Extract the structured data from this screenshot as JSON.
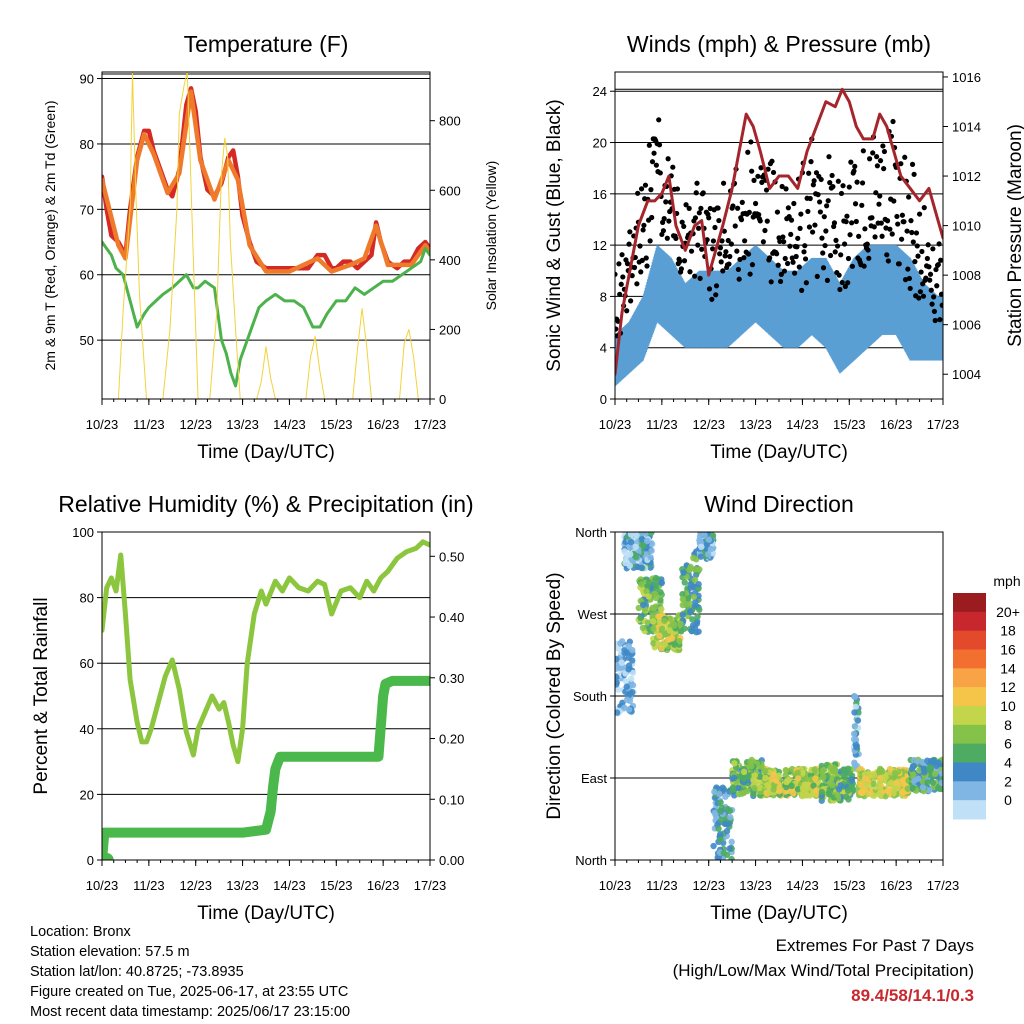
{
  "chart_data": [
    {
      "type": "line",
      "title": "Temperature (F)",
      "xlabel": "Time (Day/UTC)",
      "ylabel": "2m & 9m T (Red, Orange) & 2m Td (Green)",
      "y2label": "Solar Insolation (Yellow)",
      "x_ticks": [
        "10/23",
        "11/23",
        "12/23",
        "13/23",
        "14/23",
        "15/23",
        "16/23",
        "17/23"
      ],
      "xlim": [
        0,
        7
      ],
      "ylim": [
        41,
        91
      ],
      "y_ticks": [
        50,
        60,
        70,
        80,
        90
      ],
      "y2lim": [
        0,
        940
      ],
      "y2_ticks": [
        0,
        200,
        400,
        600,
        800
      ],
      "grid": "horizontal",
      "series": [
        {
          "color": "#d42a25",
          "axis": "left",
          "x": [
            0,
            0.1,
            0.2,
            0.35,
            0.5,
            0.6,
            0.75,
            0.9,
            1.0,
            1.1,
            1.25,
            1.4,
            1.5,
            1.65,
            1.8,
            1.9,
            2.0,
            2.1,
            2.25,
            2.4,
            2.55,
            2.7,
            2.8,
            2.9,
            3.0,
            3.15,
            3.3,
            3.5,
            3.65,
            3.8,
            4.0,
            4.2,
            4.4,
            4.6,
            4.75,
            4.9,
            5.0,
            5.15,
            5.3,
            5.45,
            5.6,
            5.75,
            5.85,
            5.95,
            6.1,
            6.3,
            6.45,
            6.6,
            6.75,
            6.9,
            7.0
          ],
          "values": [
            75,
            70,
            66,
            65,
            63,
            70,
            78,
            82,
            82,
            79,
            76,
            73,
            72,
            76,
            86,
            88.5,
            85,
            78,
            73,
            72,
            74,
            78,
            79,
            75,
            69,
            65,
            62,
            61,
            61,
            61,
            61,
            61,
            61,
            63,
            63,
            61,
            61,
            62,
            62,
            61,
            62,
            63,
            68,
            65,
            62,
            61,
            62,
            62,
            64,
            65,
            64
          ]
        },
        {
          "color": "#f07a2c",
          "axis": "left",
          "x": [
            0,
            0.35,
            0.5,
            0.75,
            0.9,
            1.1,
            1.4,
            1.65,
            1.9,
            2.1,
            2.4,
            2.7,
            2.9,
            3.15,
            3.5,
            4.0,
            4.6,
            4.9,
            5.3,
            5.6,
            5.85,
            6.1,
            6.6,
            6.9,
            7.0
          ],
          "values": [
            74.5,
            64.5,
            62.5,
            77.5,
            81.5,
            78.5,
            72.5,
            75.5,
            88,
            77.5,
            71.5,
            77.5,
            74.5,
            64.5,
            60.5,
            60.5,
            62.5,
            60.5,
            61.5,
            62.5,
            67.5,
            61.5,
            61.5,
            64.5,
            63.5
          ]
        },
        {
          "color": "#4cb24c",
          "axis": "left",
          "x": [
            0,
            0.1,
            0.2,
            0.3,
            0.45,
            0.6,
            0.75,
            0.9,
            1.0,
            1.15,
            1.3,
            1.5,
            1.65,
            1.8,
            1.95,
            2.05,
            2.2,
            2.4,
            2.55,
            2.65,
            2.75,
            2.85,
            2.95,
            3.05,
            3.2,
            3.35,
            3.5,
            3.7,
            3.9,
            4.1,
            4.3,
            4.5,
            4.65,
            4.8,
            5.0,
            5.2,
            5.4,
            5.6,
            5.8,
            6.0,
            6.2,
            6.4,
            6.6,
            6.8,
            6.9,
            7.0
          ],
          "values": [
            65,
            64,
            63,
            61,
            60,
            56,
            52,
            54,
            55,
            56,
            57,
            58,
            59,
            60,
            58,
            58,
            59,
            58,
            50,
            48,
            45,
            43,
            47,
            49,
            52,
            55,
            56,
            57,
            56,
            56,
            55,
            52,
            52,
            54,
            56,
            56,
            58,
            57,
            58,
            59,
            59,
            60,
            61,
            62,
            64,
            63
          ]
        },
        {
          "color": "#f2d33a",
          "axis": "right",
          "name_hidden": true,
          "x": [
            0,
            0.35,
            0.45,
            0.6,
            0.65,
            0.72,
            0.8,
            0.95,
            1.3,
            1.45,
            1.6,
            1.65,
            1.75,
            1.82,
            1.88,
            1.95,
            2.05,
            2.3,
            2.45,
            2.55,
            2.62,
            2.68,
            2.74,
            2.85,
            2.95,
            3.3,
            3.4,
            3.5,
            3.6,
            3.7,
            4.35,
            4.45,
            4.55,
            4.65,
            4.75,
            5.35,
            5.45,
            5.55,
            5.65,
            5.75,
            6.35,
            6.45,
            6.55,
            6.65,
            6.75,
            7.0
          ],
          "values": [
            0,
            0,
            250,
            550,
            940,
            600,
            300,
            0,
            0,
            200,
            550,
            820,
            900,
            940,
            700,
            400,
            0,
            0,
            250,
            650,
            750,
            700,
            450,
            200,
            0,
            0,
            50,
            150,
            60,
            0,
            0,
            120,
            180,
            80,
            0,
            0,
            140,
            260,
            150,
            0,
            0,
            160,
            200,
            120,
            0,
            0
          ]
        }
      ]
    },
    {
      "type": "line",
      "title": "Winds (mph) & Pressure (mb)",
      "xlabel": "Time (Day/UTC)",
      "ylabel": "Sonic Wind & Gust (Blue, Black)",
      "y2label": "Station Pressure (Maroon)",
      "x_ticks": [
        "10/23",
        "11/23",
        "12/23",
        "13/23",
        "14/23",
        "15/23",
        "16/23",
        "17/23"
      ],
      "xlim": [
        0,
        7
      ],
      "ylim": [
        0,
        25.5
      ],
      "y_ticks": [
        0,
        4,
        8,
        12,
        16,
        20,
        24
      ],
      "y2lim": [
        1003,
        1016.2
      ],
      "y2_ticks": [
        1004,
        1006,
        1008,
        1010,
        1012,
        1014,
        1016
      ],
      "grid": "horizontal",
      "series": [
        {
          "color": "#5a9fd4",
          "axis": "left",
          "band": true,
          "x": [
            0,
            0.3,
            0.6,
            0.9,
            1.2,
            1.5,
            1.8,
            2.1,
            2.4,
            2.7,
            3.0,
            3.3,
            3.6,
            3.9,
            4.2,
            4.5,
            4.8,
            5.1,
            5.4,
            5.7,
            6.0,
            6.3,
            6.6,
            6.9,
            7.0
          ],
          "low": [
            1,
            2,
            3,
            6,
            5,
            4,
            4,
            4,
            4,
            5,
            6,
            5,
            4,
            4,
            5,
            4,
            2,
            3,
            4,
            5,
            5,
            3,
            3,
            3,
            3
          ],
          "high": [
            5,
            6,
            8,
            12,
            11,
            9,
            10,
            10,
            10,
            11,
            12,
            11,
            10,
            10,
            11,
            11,
            9,
            11,
            12,
            12,
            12,
            11,
            9,
            8,
            8
          ]
        },
        {
          "color": "#000000",
          "axis": "left",
          "band": true,
          "x": [
            0,
            0.3,
            0.6,
            0.9,
            1.2,
            1.5,
            1.8,
            2.1,
            2.4,
            2.7,
            3.0,
            3.3,
            3.6,
            3.9,
            4.2,
            4.5,
            4.8,
            5.1,
            5.4,
            5.7,
            6.0,
            6.3,
            6.6,
            6.9,
            7.0
          ],
          "low": [
            3,
            5,
            7,
            12,
            10,
            8,
            8,
            7,
            8,
            9,
            10,
            9,
            8,
            8,
            9,
            9,
            6,
            8,
            10,
            11,
            10,
            8,
            6,
            5,
            5
          ],
          "high": [
            10,
            12,
            17,
            21,
            18,
            15,
            16,
            15,
            16,
            18,
            19,
            18,
            17,
            17,
            19,
            20,
            16,
            19,
            21,
            21,
            20,
            18,
            14,
            12,
            12
          ]
        },
        {
          "color": "#a4262c",
          "axis": "right",
          "x": [
            0,
            0.15,
            0.3,
            0.5,
            0.7,
            0.85,
            1.0,
            1.15,
            1.3,
            1.5,
            1.7,
            1.85,
            2.0,
            2.15,
            2.3,
            2.5,
            2.65,
            2.8,
            2.95,
            3.1,
            3.3,
            3.5,
            3.7,
            3.9,
            4.1,
            4.3,
            4.5,
            4.7,
            4.85,
            5.0,
            5.15,
            5.3,
            5.5,
            5.65,
            5.8,
            5.95,
            6.1,
            6.3,
            6.5,
            6.7,
            6.85,
            7.0
          ],
          "values": [
            1004,
            1006.5,
            1008,
            1010,
            1011,
            1011,
            1011.3,
            1012,
            1010,
            1009,
            1010,
            1010.2,
            1008,
            1009,
            1010,
            1011.5,
            1013,
            1014.5,
            1014,
            1013,
            1011.5,
            1012,
            1012,
            1011.5,
            1013,
            1014,
            1015,
            1014.8,
            1015.5,
            1015,
            1014,
            1013.5,
            1013.5,
            1014.5,
            1014,
            1013,
            1012,
            1011.5,
            1011,
            1011.5,
            1010.5,
            1009.5
          ]
        }
      ]
    },
    {
      "type": "line",
      "title": "Relative Humidity (%) & Precipitation (in)",
      "xlabel": "Time (Day/UTC)",
      "ylabel": "Percent & Total Rainfall",
      "x_ticks": [
        "10/23",
        "11/23",
        "12/23",
        "13/23",
        "14/23",
        "15/23",
        "16/23",
        "17/23"
      ],
      "xlim": [
        0,
        7
      ],
      "ylim": [
        0,
        100
      ],
      "y_ticks": [
        0,
        20,
        40,
        60,
        80,
        100
      ],
      "y2lim": [
        0,
        0.54
      ],
      "y2_ticks": [
        "0.00",
        "0.10",
        "0.20",
        "0.30",
        "0.40",
        "0.50"
      ],
      "grid": "horizontal",
      "series": [
        {
          "color": "#8cc63f",
          "axis": "left",
          "name_hidden": true,
          "x": [
            0,
            0.1,
            0.2,
            0.3,
            0.4,
            0.5,
            0.6,
            0.75,
            0.85,
            0.95,
            1.05,
            1.2,
            1.35,
            1.5,
            1.65,
            1.8,
            1.95,
            2.05,
            2.2,
            2.35,
            2.5,
            2.6,
            2.7,
            2.8,
            2.9,
            3.0,
            3.1,
            3.25,
            3.4,
            3.5,
            3.7,
            3.85,
            4.0,
            4.2,
            4.4,
            4.6,
            4.75,
            4.9,
            5.1,
            5.3,
            5.5,
            5.65,
            5.8,
            5.95,
            6.1,
            6.3,
            6.5,
            6.7,
            6.85,
            7.0
          ],
          "values": [
            70,
            83,
            86,
            82,
            93,
            75,
            55,
            42,
            36,
            36,
            40,
            48,
            56,
            61,
            52,
            39,
            32,
            40,
            45,
            50,
            46,
            48,
            42,
            35,
            30,
            40,
            60,
            75,
            82,
            78,
            85,
            82,
            86,
            83,
            82,
            85,
            84,
            75,
            82,
            83,
            80,
            85,
            82,
            86,
            88,
            92,
            94,
            95,
            97,
            96
          ]
        },
        {
          "color": "#4ab84a",
          "axis": "right",
          "step": true,
          "x": [
            0,
            0.05,
            0.1,
            0.5,
            1.0,
            2.0,
            3.0,
            3.5,
            3.6,
            3.65,
            3.7,
            3.8,
            4.0,
            5.0,
            5.9,
            5.95,
            6.0,
            6.05,
            6.2,
            7.0
          ],
          "values": [
            0,
            0.045,
            0.045,
            0.045,
            0.045,
            0.045,
            0.045,
            0.05,
            0.08,
            0.12,
            0.15,
            0.17,
            0.17,
            0.17,
            0.17,
            0.22,
            0.27,
            0.29,
            0.295,
            0.295
          ]
        }
      ]
    },
    {
      "type": "scatter",
      "title": "Wind Direction",
      "xlabel": "Time (Day/UTC)",
      "ylabel": "Direction (Colored By Speed)",
      "x_ticks": [
        "10/23",
        "11/23",
        "12/23",
        "13/23",
        "14/23",
        "15/23",
        "16/23",
        "17/23"
      ],
      "xlim": [
        0,
        7
      ],
      "y_ticks": [
        "North",
        "East",
        "South",
        "West",
        "North"
      ],
      "y_tick_values": [
        0,
        90,
        180,
        270,
        360
      ],
      "ylim": [
        0,
        360
      ],
      "grid": "horizontal",
      "colorbar": {
        "title": "mph",
        "labels": [
          "20+",
          "18",
          "16",
          "14",
          "12",
          "10",
          "8",
          "6",
          "4",
          "2",
          "0"
        ],
        "colors": [
          "#9b1c1f",
          "#c8282d",
          "#e34a2c",
          "#f26f30",
          "#f8a346",
          "#f5c54a",
          "#c3d54b",
          "#84c24a",
          "#4dab62",
          "#3f88c5",
          "#7fb6e3",
          "#bfe0f6"
        ]
      },
      "clusters": [
        {
          "x0": 0.0,
          "x1": 0.4,
          "d0": 160,
          "d1": 240,
          "speed": 3
        },
        {
          "x0": 0.2,
          "x1": 0.8,
          "d0": 320,
          "d1": 360,
          "speed": 4
        },
        {
          "x0": 0.5,
          "x1": 1.0,
          "d0": 250,
          "d1": 310,
          "speed": 8
        },
        {
          "x0": 0.8,
          "x1": 1.4,
          "d0": 230,
          "d1": 270,
          "speed": 10
        },
        {
          "x0": 1.4,
          "x1": 1.8,
          "d0": 250,
          "d1": 340,
          "speed": 7
        },
        {
          "x0": 1.8,
          "x1": 2.1,
          "d0": 330,
          "d1": 360,
          "speed": 4
        },
        {
          "x0": 2.1,
          "x1": 2.5,
          "d0": 0,
          "d1": 80,
          "speed": 5
        },
        {
          "x0": 2.5,
          "x1": 3.2,
          "d0": 70,
          "d1": 110,
          "speed": 8
        },
        {
          "x0": 3.2,
          "x1": 4.4,
          "d0": 70,
          "d1": 100,
          "speed": 10
        },
        {
          "x0": 4.4,
          "x1": 5.1,
          "d0": 65,
          "d1": 105,
          "speed": 8
        },
        {
          "x0": 5.1,
          "x1": 5.2,
          "d0": 100,
          "d1": 185,
          "speed": 4
        },
        {
          "x0": 5.2,
          "x1": 6.3,
          "d0": 70,
          "d1": 100,
          "speed": 11
        },
        {
          "x0": 6.3,
          "x1": 7.0,
          "d0": 75,
          "d1": 110,
          "speed": 6
        }
      ]
    }
  ],
  "info": {
    "location": "Location: Bronx",
    "elevation": "Station elevation: 57.5 m",
    "latlon": "Station lat/lon: 40.8725; -73.8935",
    "created": "Figure created on Tue, 2025-06-17, at 23:55 UTC",
    "recent": "Most recent data timestamp: 2025/06/17 23:15:00"
  },
  "extremes": {
    "title": "Extremes For Past 7 Days",
    "subtitle": "(High/Low/Max Wind/Total Precipitation)",
    "values": "89.4/58/14.1/0.3"
  }
}
